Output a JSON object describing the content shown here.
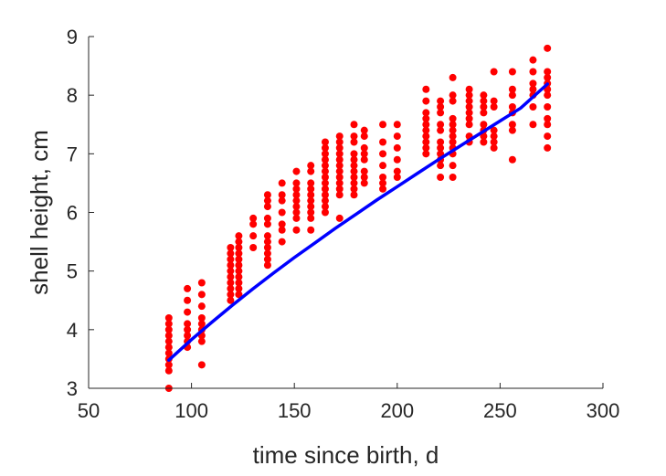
{
  "chart_data": {
    "type": "scatter",
    "xlabel": "time since birth, d",
    "ylabel": "shell height, cm",
    "xlim": [
      50,
      300
    ],
    "ylim": [
      3,
      9
    ],
    "xticks": [
      50,
      100,
      150,
      200,
      250,
      300
    ],
    "yticks": [
      3,
      4,
      5,
      6,
      7,
      8,
      9
    ],
    "grid": false,
    "colors": {
      "points": "#ff0000",
      "fit": "#0000ff",
      "axis": "#262626"
    },
    "series": [
      {
        "kind": "scatter",
        "points": [
          [
            89,
            3.0
          ],
          [
            89,
            3.3
          ],
          [
            89,
            3.4
          ],
          [
            89,
            3.5
          ],
          [
            89,
            3.6
          ],
          [
            89,
            3.7
          ],
          [
            89,
            3.8
          ],
          [
            89,
            3.9
          ],
          [
            89,
            4.0
          ],
          [
            89,
            4.1
          ],
          [
            89,
            4.2
          ],
          [
            98,
            3.7
          ],
          [
            98,
            3.8
          ],
          [
            98,
            3.9
          ],
          [
            98,
            4.0
          ],
          [
            98,
            4.1
          ],
          [
            98,
            4.3
          ],
          [
            98,
            4.5
          ],
          [
            98,
            4.7
          ],
          [
            105,
            3.4
          ],
          [
            105,
            3.8
          ],
          [
            105,
            3.9
          ],
          [
            105,
            4.0
          ],
          [
            105,
            4.1
          ],
          [
            105,
            4.2
          ],
          [
            105,
            4.4
          ],
          [
            105,
            4.6
          ],
          [
            105,
            4.8
          ],
          [
            119,
            4.5
          ],
          [
            119,
            4.6
          ],
          [
            119,
            4.7
          ],
          [
            119,
            4.8
          ],
          [
            119,
            4.9
          ],
          [
            119,
            5.0
          ],
          [
            119,
            5.1
          ],
          [
            119,
            5.2
          ],
          [
            119,
            5.3
          ],
          [
            119,
            5.4
          ],
          [
            123,
            4.6
          ],
          [
            123,
            4.7
          ],
          [
            123,
            4.8
          ],
          [
            123,
            4.9
          ],
          [
            123,
            5.0
          ],
          [
            123,
            5.1
          ],
          [
            123,
            5.2
          ],
          [
            123,
            5.3
          ],
          [
            123,
            5.4
          ],
          [
            123,
            5.5
          ],
          [
            123,
            5.6
          ],
          [
            130,
            5.4
          ],
          [
            130,
            5.6
          ],
          [
            130,
            5.8
          ],
          [
            130,
            5.9
          ],
          [
            137,
            5.1
          ],
          [
            137,
            5.2
          ],
          [
            137,
            5.3
          ],
          [
            137,
            5.4
          ],
          [
            137,
            5.5
          ],
          [
            137,
            5.6
          ],
          [
            137,
            5.8
          ],
          [
            137,
            5.9
          ],
          [
            137,
            6.1
          ],
          [
            137,
            6.2
          ],
          [
            137,
            6.3
          ],
          [
            144,
            5.5
          ],
          [
            144,
            5.7
          ],
          [
            144,
            5.8
          ],
          [
            144,
            6.0
          ],
          [
            144,
            6.2
          ],
          [
            144,
            6.3
          ],
          [
            144,
            6.5
          ],
          [
            151,
            5.7
          ],
          [
            151,
            5.9
          ],
          [
            151,
            6.0
          ],
          [
            151,
            6.1
          ],
          [
            151,
            6.2
          ],
          [
            151,
            6.3
          ],
          [
            151,
            6.4
          ],
          [
            151,
            6.5
          ],
          [
            151,
            6.7
          ],
          [
            158,
            5.7
          ],
          [
            158,
            5.9
          ],
          [
            158,
            6.0
          ],
          [
            158,
            6.1
          ],
          [
            158,
            6.2
          ],
          [
            158,
            6.3
          ],
          [
            158,
            6.4
          ],
          [
            158,
            6.5
          ],
          [
            158,
            6.7
          ],
          [
            158,
            6.8
          ],
          [
            165,
            6.0
          ],
          [
            165,
            6.1
          ],
          [
            165,
            6.2
          ],
          [
            165,
            6.3
          ],
          [
            165,
            6.4
          ],
          [
            165,
            6.5
          ],
          [
            165,
            6.6
          ],
          [
            165,
            6.7
          ],
          [
            165,
            6.8
          ],
          [
            165,
            6.9
          ],
          [
            165,
            7.0
          ],
          [
            165,
            7.1
          ],
          [
            165,
            7.2
          ],
          [
            172,
            5.9
          ],
          [
            172,
            6.3
          ],
          [
            172,
            6.4
          ],
          [
            172,
            6.5
          ],
          [
            172,
            6.6
          ],
          [
            172,
            6.7
          ],
          [
            172,
            6.8
          ],
          [
            172,
            6.9
          ],
          [
            172,
            7.0
          ],
          [
            172,
            7.1
          ],
          [
            172,
            7.2
          ],
          [
            172,
            7.3
          ],
          [
            179,
            6.3
          ],
          [
            179,
            6.4
          ],
          [
            179,
            6.5
          ],
          [
            179,
            6.6
          ],
          [
            179,
            6.7
          ],
          [
            179,
            6.8
          ],
          [
            179,
            6.9
          ],
          [
            179,
            7.0
          ],
          [
            179,
            7.2
          ],
          [
            179,
            7.3
          ],
          [
            179,
            7.5
          ],
          [
            184,
            6.5
          ],
          [
            184,
            6.6
          ],
          [
            184,
            6.7
          ],
          [
            184,
            6.9
          ],
          [
            184,
            7.0
          ],
          [
            184,
            7.1
          ],
          [
            184,
            7.3
          ],
          [
            184,
            7.4
          ],
          [
            193,
            6.4
          ],
          [
            193,
            6.5
          ],
          [
            193,
            6.6
          ],
          [
            193,
            6.8
          ],
          [
            193,
            7.0
          ],
          [
            193,
            7.2
          ],
          [
            193,
            7.5
          ],
          [
            200,
            6.6
          ],
          [
            200,
            6.7
          ],
          [
            200,
            6.9
          ],
          [
            200,
            7.1
          ],
          [
            200,
            7.3
          ],
          [
            200,
            7.5
          ],
          [
            214,
            7.0
          ],
          [
            214,
            7.1
          ],
          [
            214,
            7.2
          ],
          [
            214,
            7.3
          ],
          [
            214,
            7.4
          ],
          [
            214,
            7.5
          ],
          [
            214,
            7.6
          ],
          [
            214,
            7.7
          ],
          [
            214,
            7.9
          ],
          [
            214,
            8.1
          ],
          [
            221,
            6.6
          ],
          [
            221,
            6.8
          ],
          [
            221,
            6.9
          ],
          [
            221,
            7.0
          ],
          [
            221,
            7.1
          ],
          [
            221,
            7.2
          ],
          [
            221,
            7.4
          ],
          [
            221,
            7.5
          ],
          [
            221,
            7.7
          ],
          [
            221,
            7.8
          ],
          [
            221,
            7.9
          ],
          [
            227,
            6.6
          ],
          [
            227,
            6.8
          ],
          [
            227,
            7.0
          ],
          [
            227,
            7.1
          ],
          [
            227,
            7.2
          ],
          [
            227,
            7.3
          ],
          [
            227,
            7.4
          ],
          [
            227,
            7.5
          ],
          [
            227,
            7.6
          ],
          [
            227,
            7.9
          ],
          [
            227,
            8.0
          ],
          [
            227,
            8.3
          ],
          [
            235,
            7.2
          ],
          [
            235,
            7.3
          ],
          [
            235,
            7.5
          ],
          [
            235,
            7.6
          ],
          [
            235,
            7.7
          ],
          [
            235,
            7.8
          ],
          [
            235,
            7.9
          ],
          [
            235,
            8.0
          ],
          [
            235,
            8.1
          ],
          [
            242,
            7.2
          ],
          [
            242,
            7.3
          ],
          [
            242,
            7.4
          ],
          [
            242,
            7.5
          ],
          [
            242,
            7.7
          ],
          [
            242,
            7.8
          ],
          [
            242,
            7.9
          ],
          [
            242,
            8.0
          ],
          [
            247,
            7.1
          ],
          [
            247,
            7.2
          ],
          [
            247,
            7.3
          ],
          [
            247,
            7.4
          ],
          [
            247,
            7.8
          ],
          [
            247,
            7.9
          ],
          [
            247,
            8.4
          ],
          [
            256,
            6.9
          ],
          [
            256,
            7.4
          ],
          [
            256,
            7.5
          ],
          [
            256,
            7.7
          ],
          [
            256,
            7.8
          ],
          [
            256,
            8.0
          ],
          [
            256,
            8.1
          ],
          [
            256,
            8.4
          ],
          [
            266,
            7.5
          ],
          [
            266,
            7.8
          ],
          [
            266,
            8.0
          ],
          [
            266,
            8.1
          ],
          [
            266,
            8.2
          ],
          [
            266,
            8.4
          ],
          [
            266,
            8.6
          ],
          [
            273,
            7.1
          ],
          [
            273,
            7.3
          ],
          [
            273,
            7.5
          ],
          [
            273,
            7.6
          ],
          [
            273,
            7.8
          ],
          [
            273,
            8.0
          ],
          [
            273,
            8.1
          ],
          [
            273,
            8.2
          ],
          [
            273,
            8.3
          ],
          [
            273,
            8.4
          ],
          [
            273,
            8.8
          ]
        ]
      },
      {
        "kind": "line",
        "x": [
          89,
          100,
          110,
          120,
          130,
          140,
          150,
          160,
          170,
          180,
          190,
          200,
          210,
          220,
          230,
          240,
          250,
          260,
          273
        ],
        "y": [
          3.48,
          3.83,
          4.13,
          4.42,
          4.7,
          4.97,
          5.23,
          5.48,
          5.73,
          5.97,
          6.21,
          6.44,
          6.67,
          6.9,
          7.12,
          7.34,
          7.56,
          7.78,
          8.19
        ]
      }
    ]
  }
}
